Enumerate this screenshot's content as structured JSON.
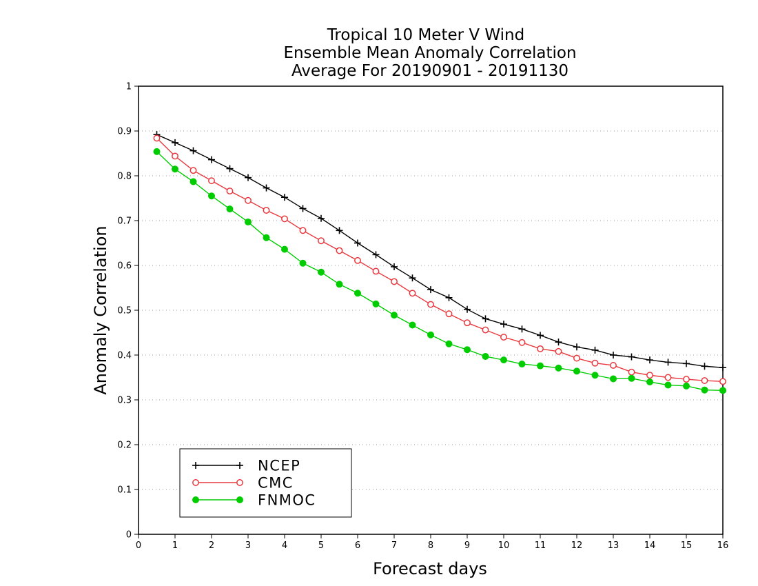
{
  "chart_data": {
    "type": "line",
    "title": [
      "Tropical 10 Meter V Wind",
      "Ensemble Mean Anomaly Correlation",
      "Average For 20190901 - 20191130"
    ],
    "xlabel": "Forecast days",
    "ylabel": "Anomaly Correlation",
    "xlim": [
      0,
      16
    ],
    "ylim": [
      0,
      1
    ],
    "xticks": [
      "0",
      "1",
      "2",
      "3",
      "4",
      "5",
      "6",
      "7",
      "8",
      "9",
      "10",
      "11",
      "12",
      "13",
      "14",
      "15",
      "16"
    ],
    "yticks": [
      "0",
      "0.1",
      "0.2",
      "0.3",
      "0.4",
      "0.5",
      "0.6",
      "0.7",
      "0.8",
      "0.9",
      "1"
    ],
    "grid": "horizontal dotted",
    "legend_position": "bottom-left",
    "x": [
      0.5,
      1,
      1.5,
      2,
      2.5,
      3,
      3.5,
      4,
      4.5,
      5,
      5.5,
      6,
      6.5,
      7,
      7.5,
      8,
      8.5,
      9,
      9.5,
      10,
      10.5,
      11,
      11.5,
      12,
      12.5,
      13,
      13.5,
      14,
      14.5,
      15,
      15.5,
      16
    ],
    "series": [
      {
        "name": "NCEP",
        "color": "#000000",
        "marker": "plus",
        "values": [
          0.892,
          0.874,
          0.856,
          0.836,
          0.816,
          0.796,
          0.773,
          0.752,
          0.727,
          0.705,
          0.678,
          0.65,
          0.624,
          0.597,
          0.572,
          0.546,
          0.528,
          0.502,
          0.481,
          0.469,
          0.458,
          0.444,
          0.429,
          0.418,
          0.411,
          0.4,
          0.396,
          0.389,
          0.384,
          0.381,
          0.375,
          0.372
        ]
      },
      {
        "name": "CMC",
        "color": "#e8383d",
        "marker": "open-circle",
        "values": [
          0.884,
          0.844,
          0.812,
          0.789,
          0.766,
          0.745,
          0.723,
          0.704,
          0.678,
          0.655,
          0.633,
          0.611,
          0.587,
          0.564,
          0.538,
          0.513,
          0.492,
          0.472,
          0.456,
          0.44,
          0.428,
          0.414,
          0.408,
          0.393,
          0.382,
          0.377,
          0.362,
          0.355,
          0.35,
          0.346,
          0.343,
          0.341
        ]
      },
      {
        "name": "FNMOC",
        "color": "#00cc00",
        "marker": "filled-circle",
        "values": [
          0.854,
          0.815,
          0.787,
          0.755,
          0.726,
          0.697,
          0.662,
          0.636,
          0.605,
          0.585,
          0.558,
          0.538,
          0.514,
          0.489,
          0.467,
          0.445,
          0.425,
          0.412,
          0.397,
          0.389,
          0.38,
          0.376,
          0.371,
          0.364,
          0.355,
          0.347,
          0.348,
          0.34,
          0.333,
          0.331,
          0.322,
          0.321
        ]
      }
    ]
  }
}
